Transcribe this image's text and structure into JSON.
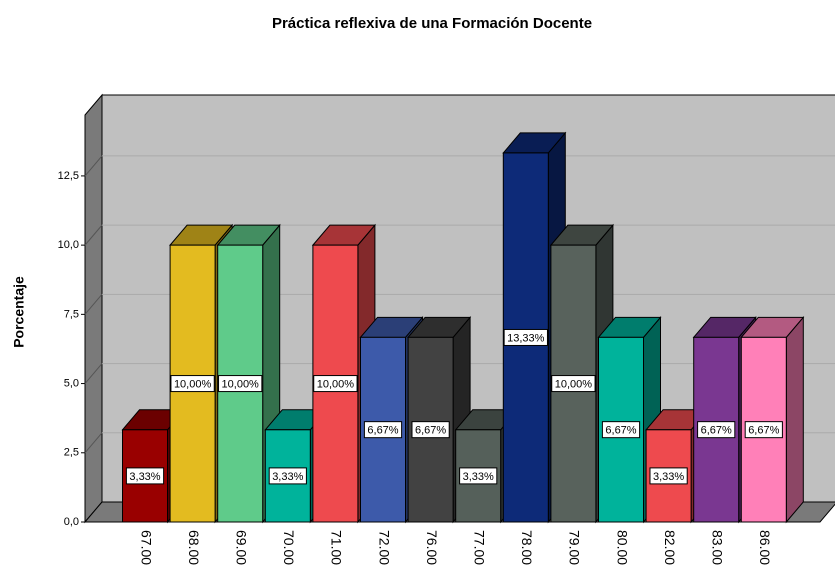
{
  "chart_data": {
    "type": "bar3d",
    "title": "Práctica reflexiva de una Formación Docente",
    "y_label": "Porcentaje",
    "categories": [
      "67.00",
      "68.00",
      "69.00",
      "70.00",
      "71.00",
      "72.00",
      "76.00",
      "77.00",
      "78.00",
      "79.00",
      "80.00",
      "82.00",
      "83.00",
      "86.00"
    ],
    "values": [
      3.33,
      10,
      10,
      3.33,
      10,
      6.67,
      6.67,
      3.33,
      13.33,
      10,
      6.67,
      3.33,
      6.67,
      6.67
    ],
    "value_labels": [
      "3,33%",
      "10,00%",
      "10,00%",
      "3,33%",
      "10,00%",
      "6,67%",
      "6,67%",
      "3,33%",
      "13,33%",
      "10,00%",
      "6,67%",
      "3,33%",
      "6,67%",
      "6,67%"
    ],
    "colors": [
      "#990000",
      "#e3bb20",
      "#5fcb8a",
      "#00b39b",
      "#ee4a4e",
      "#3d5aaa",
      "#424242",
      "#55605a",
      "#0d2a78",
      "#58625c",
      "#00b39b",
      "#ee4a4e",
      "#7a3791",
      "#ff80b8"
    ],
    "ylim": [
      0,
      14.7
    ],
    "yticks": [
      {
        "value": 0,
        "label": "0,0"
      },
      {
        "value": 2.5,
        "label": "2,5"
      },
      {
        "value": 5,
        "label": "5,0"
      },
      {
        "value": 7.5,
        "label": "7,5"
      },
      {
        "value": 10,
        "label": "10,0"
      },
      {
        "value": 12.5,
        "label": "12,5"
      }
    ],
    "grid": true
  }
}
